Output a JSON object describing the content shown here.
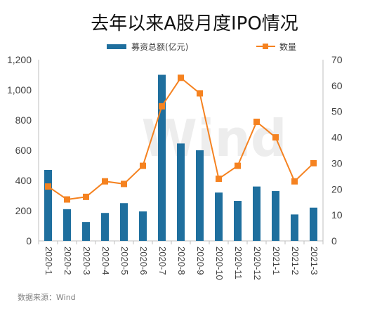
{
  "title": "去年以来A股月度IPO情况",
  "source": "数据来源：Wind",
  "watermark": "Wind",
  "legend": {
    "bar_label": "募资总额(亿元)",
    "line_label": "数量"
  },
  "colors": {
    "bar": "#1f6f9e",
    "line": "#f58220",
    "axis": "#bfbfbf",
    "text": "#404040",
    "watermark": "#ededed"
  },
  "chart_data": {
    "type": "bar",
    "categories": [
      "2020-1",
      "2020-2",
      "2020-3",
      "2020-4",
      "2020-5",
      "2020-6",
      "2020-7",
      "2020-8",
      "2020-9",
      "2020-10",
      "2020-11",
      "2020-12",
      "2021-1",
      "2021-2",
      "2021-3"
    ],
    "series": [
      {
        "name": "募资总额(亿元)",
        "type": "bar",
        "axis": "left",
        "values": [
          470,
          210,
          125,
          185,
          250,
          195,
          1100,
          645,
          600,
          320,
          265,
          360,
          330,
          175,
          220
        ]
      },
      {
        "name": "数量",
        "type": "line",
        "axis": "right",
        "values": [
          21,
          16,
          17,
          23,
          22,
          29,
          52,
          63,
          57,
          24,
          29,
          46,
          40,
          23,
          30
        ]
      }
    ],
    "y_left": {
      "min": 0,
      "max": 1200,
      "ticks": [
        "0",
        "200",
        "400",
        "600",
        "800",
        "1,000",
        "1,200"
      ]
    },
    "y_right": {
      "min": 0,
      "max": 70,
      "ticks": [
        "0",
        "10",
        "20",
        "30",
        "40",
        "50",
        "60",
        "70"
      ]
    },
    "legend_position": "top",
    "grid": false
  }
}
